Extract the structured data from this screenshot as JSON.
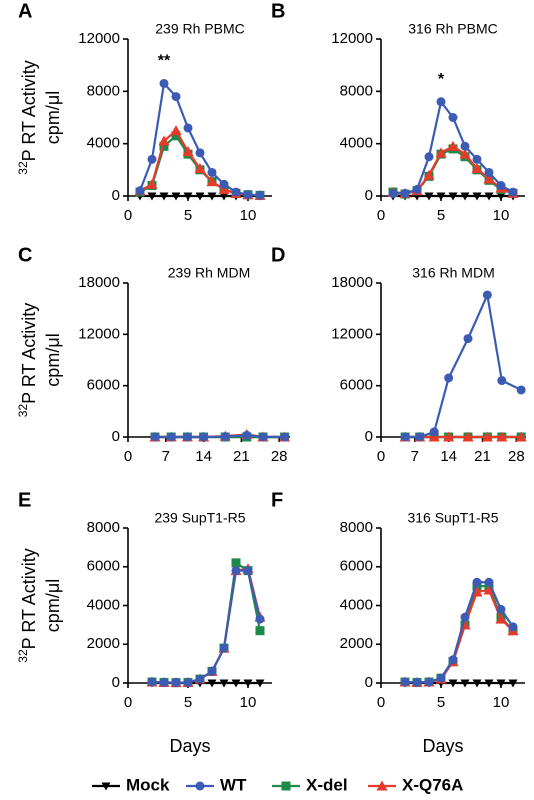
{
  "legend_position": "bottom",
  "chart_data": [
    {
      "type": "line",
      "panel": "A",
      "title": "239 Rh PBMC",
      "y_label_superscript": "32",
      "y_label": "P RT Activity",
      "y_unit": "cpm/μl",
      "x": [
        1,
        2,
        3,
        4,
        5,
        6,
        7,
        8,
        9,
        10,
        11
      ],
      "xlim": [
        0,
        12
      ],
      "xticks": [
        0,
        5,
        10
      ],
      "ylim": [
        0,
        12000
      ],
      "yticks": [
        0,
        4000,
        8000,
        12000
      ],
      "annotations": [
        {
          "text": "**",
          "x": 3
        }
      ],
      "series": [
        {
          "name": "Mock",
          "color": "#000000",
          "marker": "triangle-down",
          "values": [
            0,
            0,
            0,
            0,
            0,
            0,
            0,
            0,
            0,
            0,
            0
          ]
        },
        {
          "name": "WT",
          "color": "#3b5bb5",
          "marker": "circle",
          "values": [
            400,
            2800,
            8600,
            7600,
            5200,
            3300,
            1800,
            900,
            300,
            100,
            50
          ]
        },
        {
          "name": "X-del",
          "color": "#1e8a4a",
          "marker": "square",
          "values": [
            300,
            800,
            3800,
            4600,
            3200,
            2000,
            1100,
            500,
            200,
            100,
            50
          ]
        },
        {
          "name": "X-Q76A",
          "color": "#e63a2b",
          "marker": "triangle-up",
          "values": [
            400,
            900,
            4200,
            5000,
            3400,
            2100,
            1100,
            500,
            200,
            100,
            50
          ]
        }
      ]
    },
    {
      "type": "line",
      "panel": "B",
      "title": "316 Rh PBMC",
      "x": [
        1,
        2,
        3,
        4,
        5,
        6,
        7,
        8,
        9,
        10,
        11
      ],
      "xlim": [
        0,
        12
      ],
      "xticks": [
        0,
        5,
        10
      ],
      "ylim": [
        0,
        12000
      ],
      "yticks": [
        0,
        4000,
        8000,
        12000
      ],
      "annotations": [
        {
          "text": "*",
          "x": 5
        }
      ],
      "series": [
        {
          "name": "Mock",
          "color": "#000000",
          "marker": "triangle-down",
          "values": [
            0,
            0,
            0,
            0,
            0,
            0,
            0,
            0,
            0,
            0,
            0
          ]
        },
        {
          "name": "WT",
          "color": "#3b5bb5",
          "marker": "circle",
          "values": [
            200,
            200,
            500,
            3000,
            7200,
            6000,
            3800,
            2800,
            1800,
            800,
            300
          ]
        },
        {
          "name": "X-del",
          "color": "#1e8a4a",
          "marker": "square",
          "values": [
            300,
            150,
            400,
            1500,
            3200,
            3600,
            3000,
            2000,
            1200,
            500,
            200
          ]
        },
        {
          "name": "X-Q76A",
          "color": "#e63a2b",
          "marker": "triangle-up",
          "values": [
            300,
            200,
            400,
            1600,
            3300,
            3800,
            3200,
            2100,
            1300,
            600,
            200
          ]
        }
      ]
    },
    {
      "type": "line",
      "panel": "C",
      "title": "239 Rh MDM",
      "y_label_superscript": "32",
      "y_label": "P RT Activity",
      "y_unit": "cpm/μl",
      "x": [
        5,
        8,
        11,
        14,
        18,
        22,
        25,
        29
      ],
      "xlim": [
        0,
        30
      ],
      "xticks": [
        0,
        7,
        14,
        21,
        28
      ],
      "ylim": [
        0,
        18000
      ],
      "yticks": [
        0,
        6000,
        12000,
        18000
      ],
      "series": [
        {
          "name": "Mock",
          "color": "#000000",
          "marker": "triangle-down",
          "values": [
            0,
            0,
            0,
            0,
            0,
            0,
            0,
            0
          ]
        },
        {
          "name": "WT",
          "color": "#3b5bb5",
          "marker": "circle",
          "values": [
            0,
            0,
            0,
            0,
            50,
            200,
            0,
            0
          ]
        },
        {
          "name": "X-del",
          "color": "#1e8a4a",
          "marker": "square",
          "values": [
            0,
            0,
            0,
            0,
            0,
            0,
            0,
            0
          ]
        },
        {
          "name": "X-Q76A",
          "color": "#e63a2b",
          "marker": "triangle-up",
          "values": [
            0,
            0,
            0,
            0,
            100,
            300,
            0,
            0
          ]
        }
      ]
    },
    {
      "type": "line",
      "panel": "D",
      "title": "316 Rh MDM",
      "x": [
        5,
        8,
        11,
        14,
        18,
        22,
        25,
        29
      ],
      "xlim": [
        0,
        30
      ],
      "xticks": [
        0,
        7,
        14,
        21,
        28
      ],
      "ylim": [
        0,
        18000
      ],
      "yticks": [
        0,
        6000,
        12000,
        18000
      ],
      "series": [
        {
          "name": "Mock",
          "color": "#000000",
          "marker": "triangle-down",
          "values": [
            0,
            0,
            0,
            0,
            0,
            0,
            0,
            0
          ]
        },
        {
          "name": "WT",
          "color": "#3b5bb5",
          "marker": "circle",
          "values": [
            0,
            0,
            600,
            6900,
            11500,
            16600,
            6600,
            5500
          ]
        },
        {
          "name": "X-del",
          "color": "#1e8a4a",
          "marker": "square",
          "values": [
            0,
            0,
            0,
            0,
            0,
            0,
            0,
            0
          ]
        },
        {
          "name": "X-Q76A",
          "color": "#e63a2b",
          "marker": "triangle-up",
          "values": [
            0,
            0,
            0,
            0,
            0,
            0,
            0,
            0
          ]
        }
      ]
    },
    {
      "type": "line",
      "panel": "E",
      "title": "239 SupT1-R5",
      "y_label_superscript": "32",
      "y_label": "P RT Activity",
      "y_unit": "cpm/μl",
      "x_label": "Days",
      "x": [
        2,
        3,
        4,
        5,
        6,
        7,
        8,
        9,
        10,
        11
      ],
      "xlim": [
        0,
        12
      ],
      "xticks": [
        0,
        5,
        10
      ],
      "ylim": [
        0,
        8000
      ],
      "yticks": [
        0,
        2000,
        4000,
        6000,
        8000
      ],
      "series": [
        {
          "name": "Mock",
          "color": "#000000",
          "marker": "triangle-down",
          "values": [
            0,
            0,
            0,
            0,
            0,
            0,
            0,
            0,
            0,
            0
          ]
        },
        {
          "name": "WT",
          "color": "#3b5bb5",
          "marker": "circle",
          "values": [
            50,
            30,
            20,
            30,
            200,
            600,
            1800,
            5800,
            5800,
            3300
          ]
        },
        {
          "name": "X-del",
          "color": "#1e8a4a",
          "marker": "square",
          "values": [
            50,
            30,
            20,
            30,
            200,
            600,
            1800,
            6200,
            5800,
            2700
          ]
        },
        {
          "name": "X-Q76A",
          "color": "#e63a2b",
          "marker": "triangle-up",
          "values": [
            50,
            30,
            20,
            30,
            200,
            600,
            1800,
            5800,
            5900,
            3400
          ]
        }
      ]
    },
    {
      "type": "line",
      "panel": "F",
      "title": "316 SupT1-R5",
      "x_label": "Days",
      "x": [
        2,
        3,
        4,
        5,
        6,
        7,
        8,
        9,
        10,
        11
      ],
      "xlim": [
        0,
        12
      ],
      "xticks": [
        0,
        5,
        10
      ],
      "ylim": [
        0,
        8000
      ],
      "yticks": [
        0,
        2000,
        4000,
        6000,
        8000
      ],
      "series": [
        {
          "name": "Mock",
          "color": "#000000",
          "marker": "triangle-down",
          "values": [
            0,
            0,
            0,
            0,
            0,
            0,
            0,
            0,
            0,
            0
          ]
        },
        {
          "name": "WT",
          "color": "#3b5bb5",
          "marker": "circle",
          "values": [
            50,
            30,
            50,
            250,
            1200,
            3400,
            5200,
            5200,
            3800,
            2900
          ]
        },
        {
          "name": "X-del",
          "color": "#1e8a4a",
          "marker": "square",
          "values": [
            50,
            30,
            50,
            250,
            1100,
            3000,
            5000,
            5000,
            3400,
            2700
          ]
        },
        {
          "name": "X-Q76A",
          "color": "#e63a2b",
          "marker": "triangle-up",
          "values": [
            50,
            30,
            50,
            200,
            1100,
            3000,
            4700,
            4800,
            3300,
            2700
          ]
        }
      ]
    }
  ]
}
